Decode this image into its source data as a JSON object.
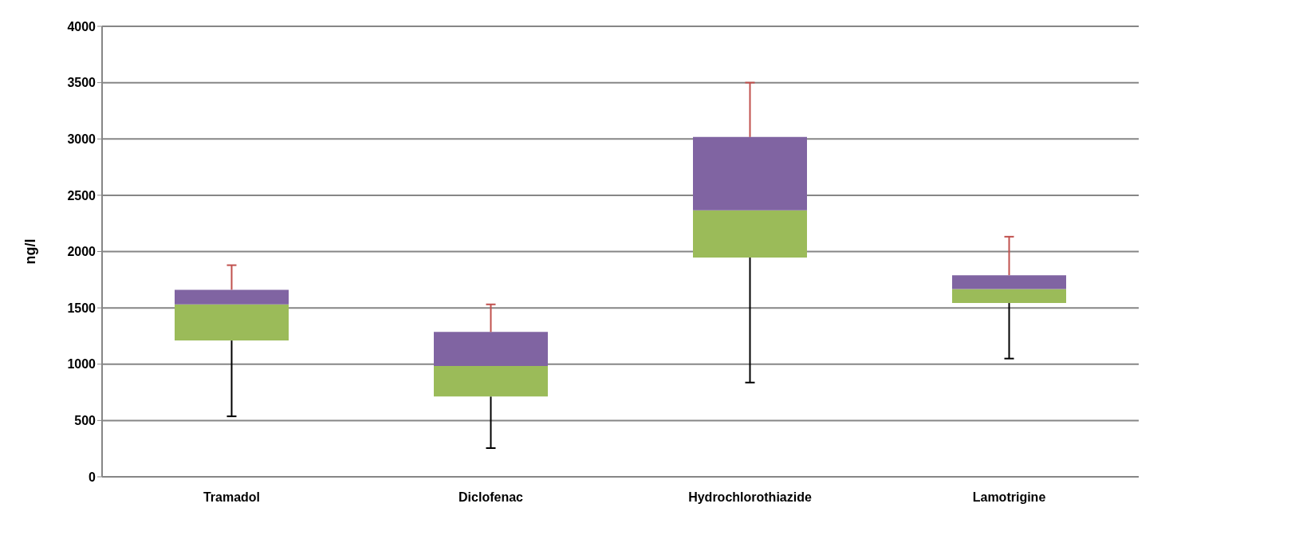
{
  "chart_data": {
    "type": "box",
    "ylabel": "ng/l",
    "categories": [
      "Tramadol",
      "Diclofenac",
      "Hydrochlorothiazide",
      "Lamotrigine"
    ],
    "boxes": [
      {
        "low": 537,
        "q1": 1210,
        "median": 1531,
        "q3": 1661,
        "high": 1879
      },
      {
        "low": 255,
        "q1": 713,
        "median": 984,
        "q3": 1286,
        "high": 1531
      },
      {
        "low": 837,
        "q1": 1947,
        "median": 2367,
        "q3": 3017,
        "high": 3500
      },
      {
        "low": 1050,
        "q1": 1543,
        "median": 1668,
        "q3": 1790,
        "high": 2132
      }
    ],
    "ylim": [
      0,
      4000
    ],
    "yticks": [
      0,
      500,
      1000,
      1500,
      2000,
      2500,
      3000,
      3500,
      4000
    ],
    "grid": "y"
  }
}
